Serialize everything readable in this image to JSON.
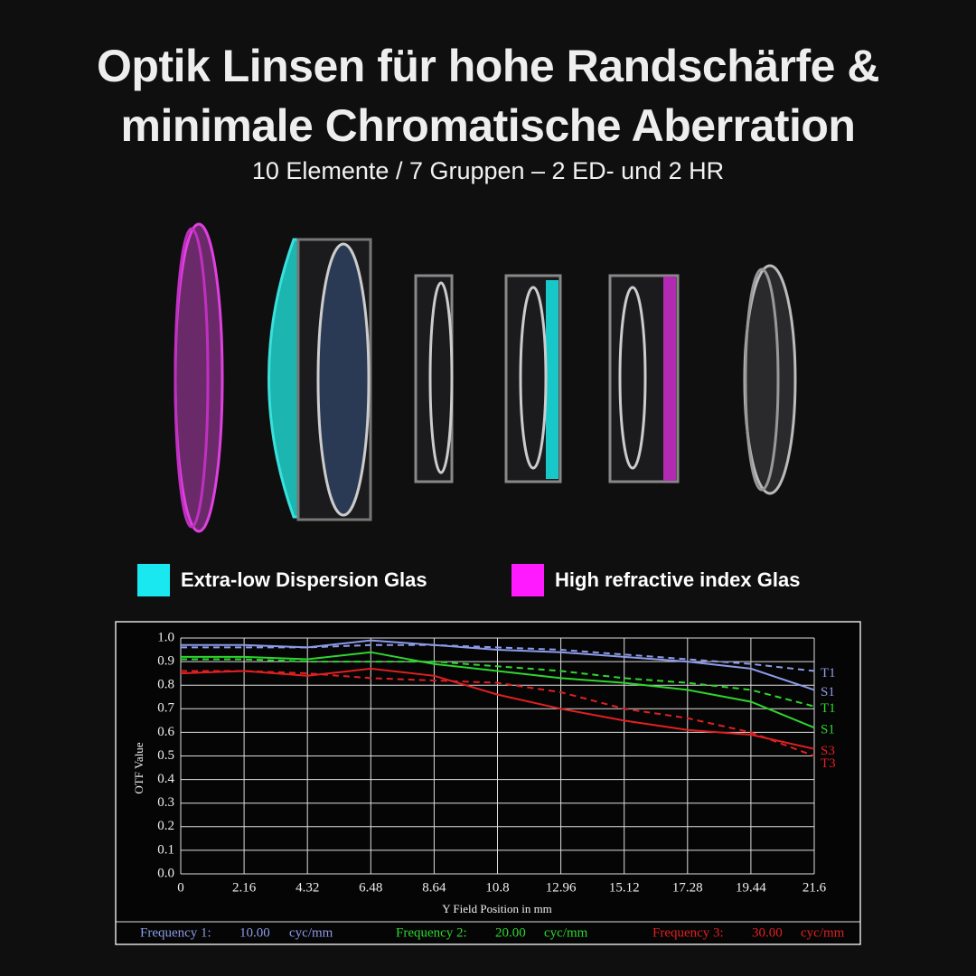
{
  "header": {
    "title_line1": "Optik Linsen für hohe Randschärfe &",
    "title_line2": "minimale Chromatische Aberration",
    "subtitle": "10 Elemente / 7 Gruppen – 2 ED- und 2 HR"
  },
  "legend": [
    {
      "label": "Extra-low Dispersion Glas",
      "color": "#19e8f0"
    },
    {
      "label": "High refractive index Glas",
      "color": "#ff1aff"
    }
  ],
  "chart_data": {
    "type": "line",
    "x_label": "Y Field Position in mm",
    "y_label": "OTF Value",
    "x": [
      0,
      2.16,
      4.32,
      6.48,
      8.64,
      10.8,
      12.96,
      15.12,
      17.28,
      19.44,
      21.6
    ],
    "xlim": [
      0,
      21.6
    ],
    "xticks": [
      0,
      2.16,
      4.32,
      6.48,
      8.64,
      10.8,
      12.96,
      15.12,
      17.28,
      19.44,
      21.6
    ],
    "ylim": [
      0,
      1
    ],
    "yticks": [
      {
        "value": 0,
        "label": "0.0"
      },
      0.1,
      0.2,
      0.3,
      0.4,
      0.5,
      0.6,
      0.7,
      0.8,
      0.9,
      {
        "value": 1,
        "label": "1.0"
      }
    ],
    "grid": true,
    "series": [
      {
        "name": "T1",
        "color": "#8c9be8",
        "style": "dashed",
        "values": [
          0.96,
          0.96,
          0.96,
          0.97,
          0.97,
          0.96,
          0.95,
          0.93,
          0.91,
          0.89,
          0.86
        ]
      },
      {
        "name": "S1",
        "color": "#8c9be8",
        "style": "solid",
        "values": [
          0.97,
          0.97,
          0.96,
          0.99,
          0.97,
          0.95,
          0.94,
          0.92,
          0.9,
          0.87,
          0.78
        ]
      },
      {
        "name": "T1",
        "color": "#2ed62e",
        "style": "dashed",
        "values": [
          0.91,
          0.91,
          0.9,
          0.9,
          0.9,
          0.88,
          0.86,
          0.83,
          0.81,
          0.78,
          0.71
        ]
      },
      {
        "name": "S1",
        "color": "#2ed62e",
        "style": "solid",
        "values": [
          0.92,
          0.92,
          0.91,
          0.94,
          0.89,
          0.86,
          0.83,
          0.81,
          0.78,
          0.73,
          0.62
        ]
      },
      {
        "name": "S3",
        "color": "#e02020",
        "style": "solid",
        "values": [
          0.85,
          0.86,
          0.84,
          0.87,
          0.84,
          0.76,
          0.7,
          0.65,
          0.61,
          0.59,
          0.53
        ]
      },
      {
        "name": "T3",
        "color": "#e02020",
        "style": "dashed",
        "values": [
          0.86,
          0.86,
          0.85,
          0.83,
          0.82,
          0.81,
          0.77,
          0.7,
          0.66,
          0.6,
          0.5
        ]
      }
    ],
    "footer": [
      {
        "label": "Frequency 1:",
        "value": "10.00",
        "unit": "cyc/mm",
        "color": "#8c9be8"
      },
      {
        "label": "Frequency 2:",
        "value": "20.00",
        "unit": "cyc/mm",
        "color": "#2ed62e"
      },
      {
        "label": "Frequency 3:",
        "value": "30.00",
        "unit": "cyc/mm",
        "color": "#e02020"
      }
    ]
  }
}
